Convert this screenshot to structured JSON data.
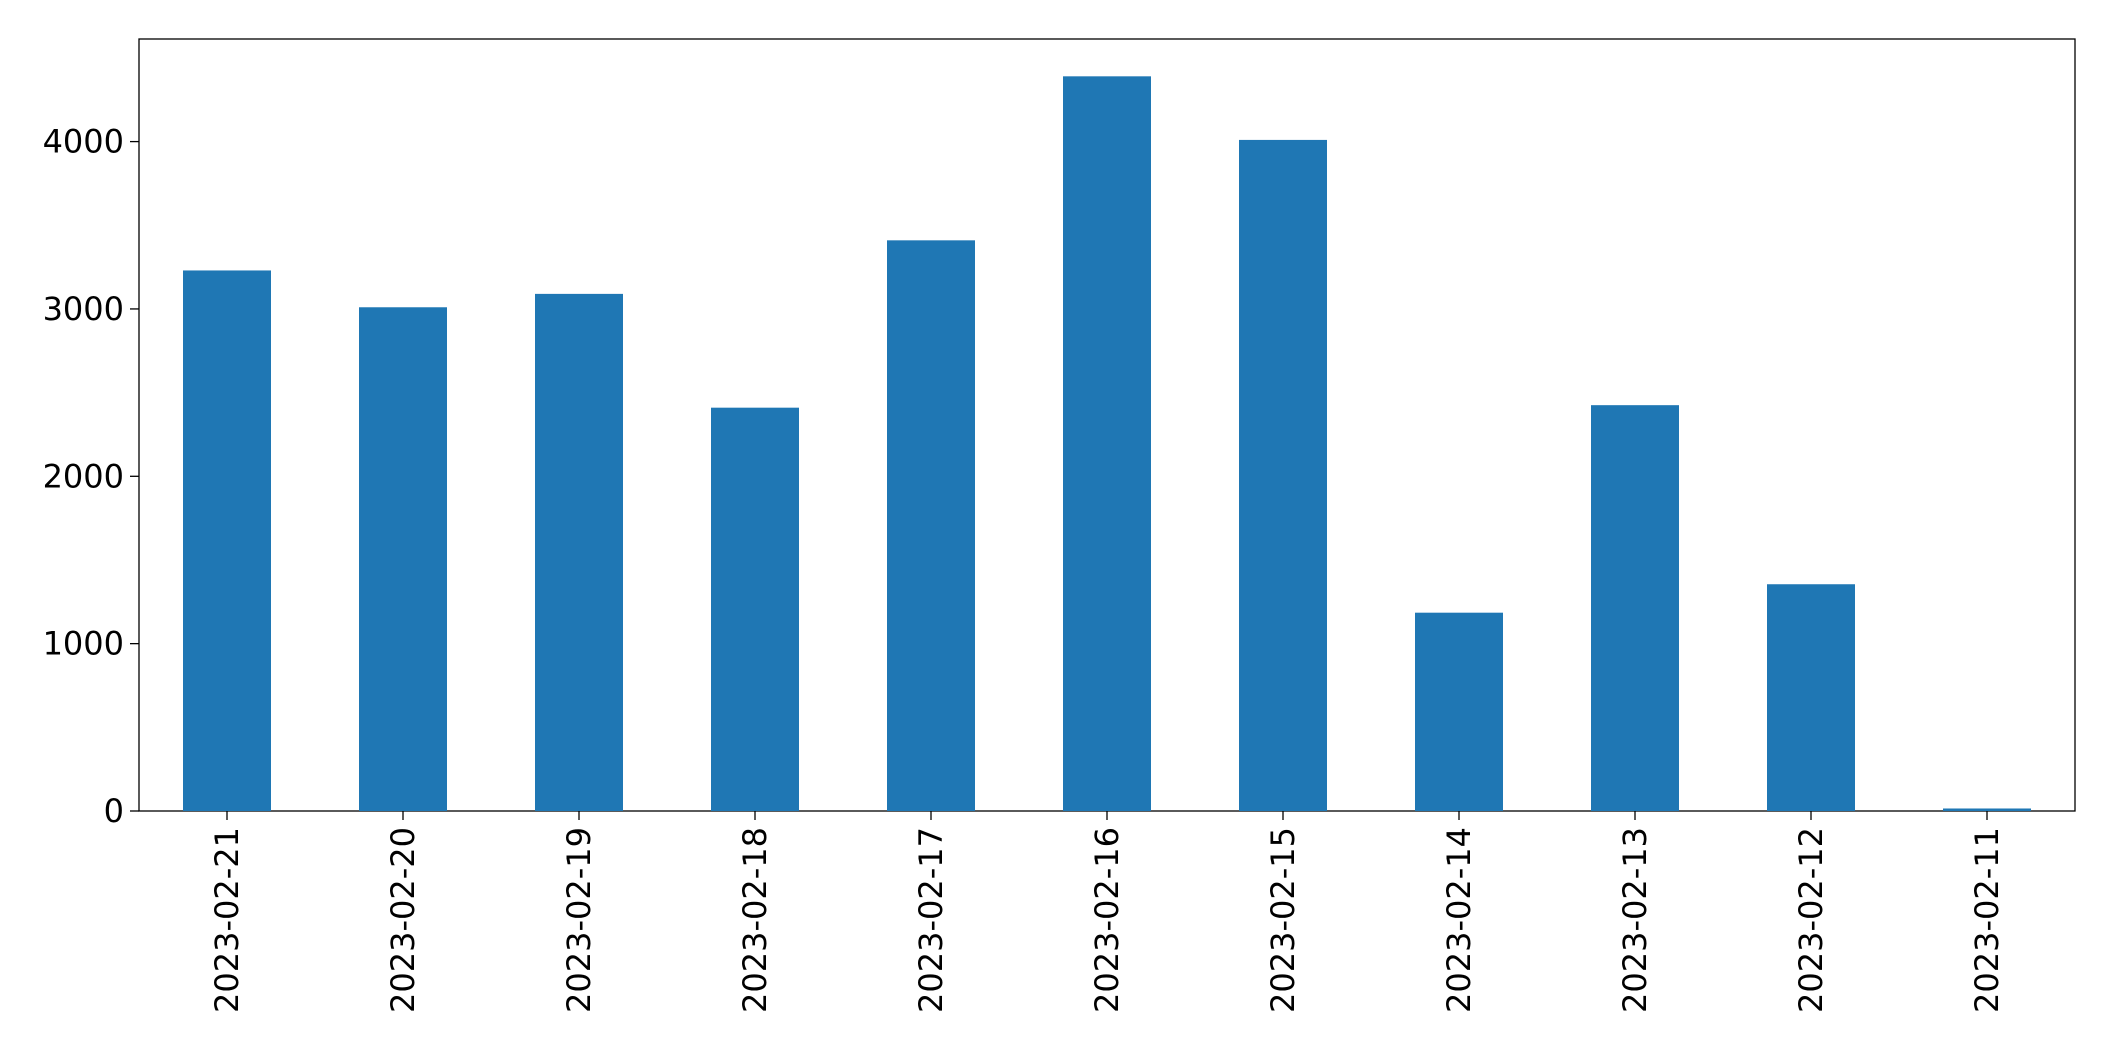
{
  "chart_data": {
    "type": "bar",
    "categories": [
      "2023-02-21",
      "2023-02-20",
      "2023-02-19",
      "2023-02-18",
      "2023-02-17",
      "2023-02-16",
      "2023-02-15",
      "2023-02-14",
      "2023-02-13",
      "2023-02-12",
      "2023-02-11"
    ],
    "values": [
      3230,
      3010,
      3090,
      2410,
      3410,
      4390,
      4010,
      1185,
      2425,
      1355,
      15
    ],
    "color": "#1f77b4",
    "ylim": [
      0,
      4613
    ],
    "yticks": [
      0,
      1000,
      2000,
      3000,
      4000
    ],
    "grid": false
  }
}
